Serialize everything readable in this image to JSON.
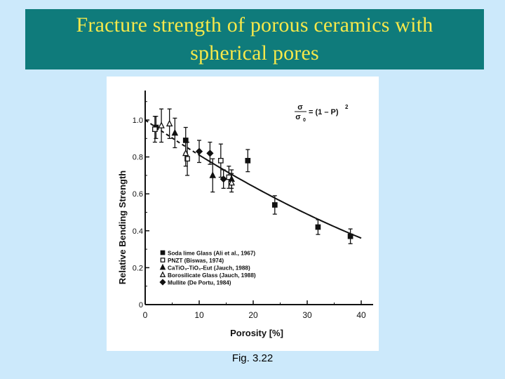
{
  "slide": {
    "title": "Fracture strength of porous ceramics with spherical pores",
    "caption": "Fig. 3.22"
  },
  "chart_data": {
    "type": "scatter",
    "title": "",
    "xlabel": "Porosity [%]",
    "ylabel": "Relative Bending Strength",
    "xlim": [
      0,
      40
    ],
    "ylim": [
      0,
      1.2
    ],
    "xticks": [
      0,
      10,
      20,
      30,
      40
    ],
    "yticks": [
      0,
      0.2,
      0.4,
      0.6,
      0.8,
      1.0
    ],
    "ytick_labels": [
      "0",
      "0.2",
      "0.4",
      "0.6",
      "0.8",
      "1.0"
    ],
    "grid": false,
    "legend_position": "bottom-left",
    "annotation": {
      "lhs_num": "σ",
      "lhs_den": "σ",
      "lhs_den_sub": "0",
      "rhs": "= (1 – P)",
      "rhs_exp": "2"
    },
    "colors": {
      "title_bar": "#0f7b7b",
      "title_text": "#f5e84a",
      "background": "#cce9fb"
    },
    "model_curve": {
      "formula": "(1-P)^2"
    },
    "series": [
      {
        "name": "Soda lime Glass (Ali et al., 1967)",
        "marker": "filled-square",
        "points": [
          [
            2,
            0.96,
            0.06
          ],
          [
            7.5,
            0.89,
            0.07
          ],
          [
            19,
            0.78,
            0.06
          ],
          [
            24,
            0.54,
            0.05
          ],
          [
            32,
            0.42,
            0.04
          ],
          [
            38,
            0.37,
            0.04
          ]
        ]
      },
      {
        "name": "PNZT (Biswas, 1974)",
        "marker": "open-square",
        "points": [
          [
            1.8,
            0.95,
            0.07
          ],
          [
            7.8,
            0.79,
            0.09
          ],
          [
            14,
            0.78,
            0.09
          ],
          [
            15.5,
            0.69,
            0.06
          ]
        ]
      },
      {
        "name": "CaTiO3-TiO2-Eut (Jauch, 1988)",
        "marker": "filled-triangle",
        "points": [
          [
            5.5,
            0.93,
            0.08
          ],
          [
            12.5,
            0.7,
            0.09
          ],
          [
            16,
            0.68,
            0.05
          ]
        ]
      },
      {
        "name": "Borosilicate Glass (Jauch, 1988)",
        "marker": "open-triangle",
        "points": [
          [
            3,
            0.97,
            0.09
          ],
          [
            4.5,
            0.98,
            0.08
          ],
          [
            7.5,
            0.82,
            0.07
          ],
          [
            16,
            0.66,
            0.05
          ]
        ]
      },
      {
        "name": "Mullite (De Portu, 1984)",
        "marker": "filled-diamond",
        "points": [
          [
            10,
            0.83,
            0.06
          ],
          [
            12,
            0.82,
            0.06
          ],
          [
            14.5,
            0.68,
            0.05
          ]
        ]
      }
    ],
    "legend_labels": [
      "Soda lime Glass (Ali et al., 1967)",
      "PNZT (Biswas, 1974)",
      "CaTiO₃-TiO₂-Eut (Jauch, 1988)",
      "Borosilicate Glass (Jauch, 1988)",
      "Mullite (De Portu, 1984)"
    ]
  }
}
